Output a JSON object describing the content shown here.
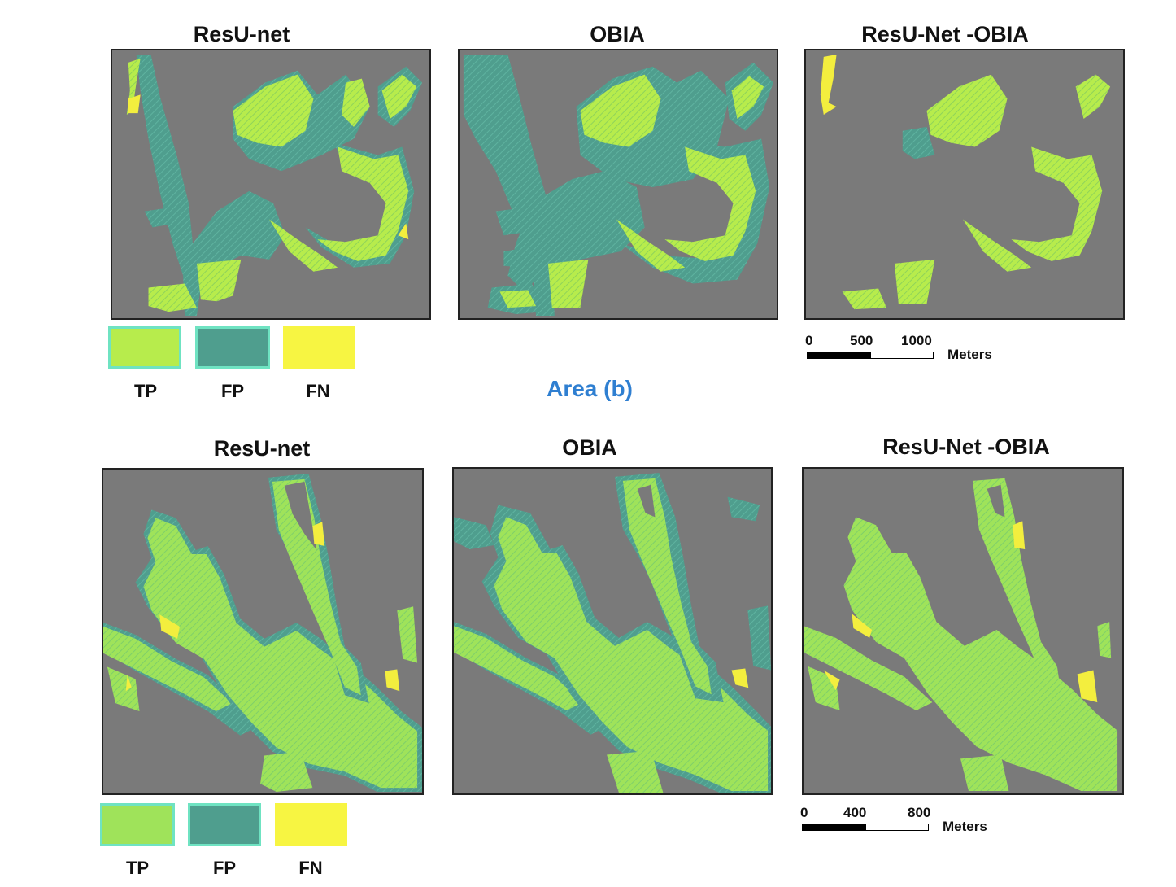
{
  "colors": {
    "tp": "#b5ec4a",
    "fp": "#4aa592",
    "fn": "#f7f542",
    "background": "#7a7a7a"
  },
  "panel_a": {
    "titles": [
      "ResU-net",
      "OBIA",
      "ResU-Net -OBIA"
    ],
    "legend": [
      "TP",
      "FP",
      "FN"
    ],
    "scale": {
      "ticks": [
        "0",
        "500",
        "1000"
      ],
      "unit": "Meters"
    }
  },
  "area_label": "Area (b)",
  "panel_b": {
    "titles": [
      "ResU-net",
      "OBIA",
      "ResU-Net -OBIA"
    ],
    "legend": [
      "TP",
      "FP",
      "FN"
    ],
    "scale": {
      "ticks": [
        "0",
        "400",
        "800"
      ],
      "unit": "Meters"
    }
  }
}
